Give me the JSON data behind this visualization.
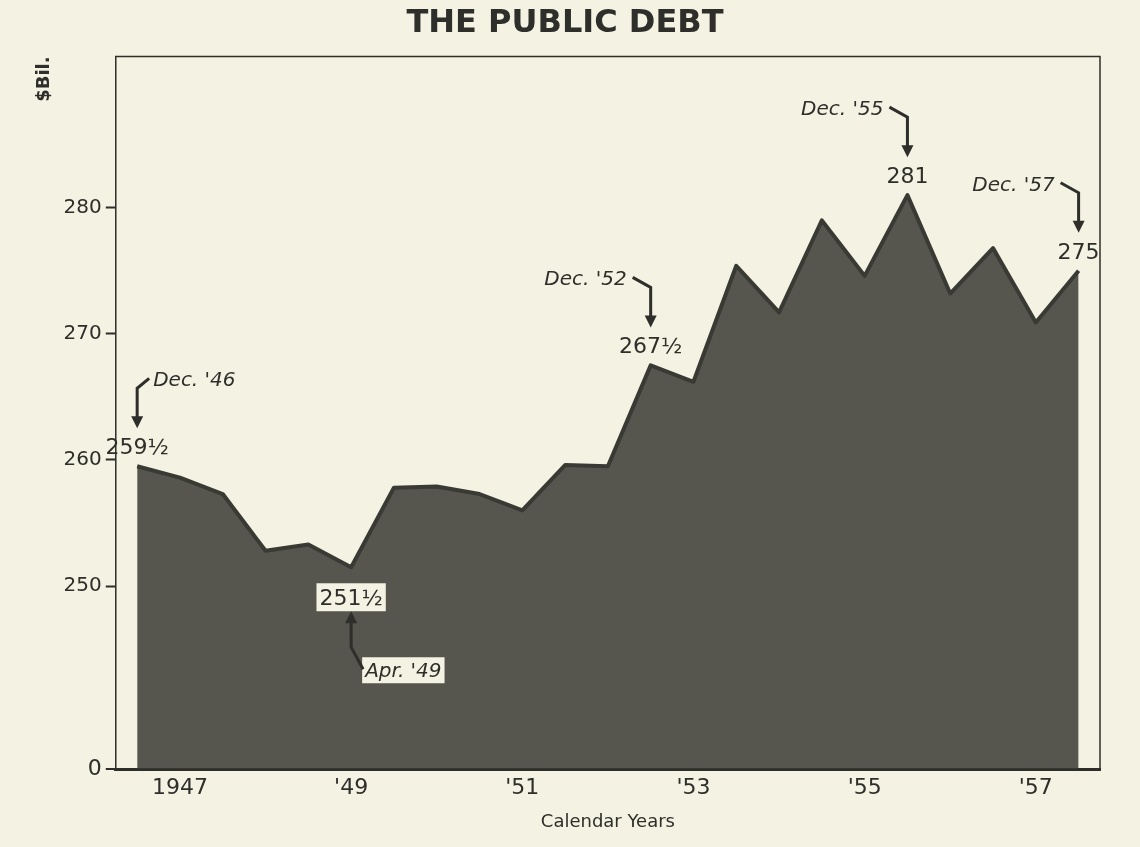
{
  "chart_data": {
    "type": "area",
    "title": "THE PUBLIC DEBT",
    "ylabel": "$Bil.",
    "xlabel": "Calendar Years",
    "categories": [
      null,
      "1947",
      null,
      null,
      null,
      "'49",
      null,
      null,
      null,
      "'51",
      null,
      null,
      null,
      "'53",
      null,
      null,
      null,
      "'55",
      null,
      null,
      null,
      "'57",
      null
    ],
    "series": [
      {
        "color": "#3a3a34",
        "values": [
          259.5,
          258.6,
          257.3,
          252.8,
          253.3,
          251.5,
          257.8,
          257.9,
          257.3,
          256,
          259.6,
          259.5,
          267.5,
          266.2,
          275.4,
          271.7,
          279,
          274.6,
          281,
          273.2,
          276.8,
          270.9,
          275
        ],
        "value_labels": [
          "259½",
          null,
          null,
          null,
          null,
          "251½",
          null,
          null,
          null,
          null,
          null,
          null,
          "267½",
          null,
          null,
          null,
          null,
          null,
          "281",
          null,
          null,
          null,
          "275"
        ]
      }
    ],
    "ylim": [
      235.5,
      292
    ],
    "yticks": [
      250,
      260,
      270,
      280
    ],
    "annotations": [
      "Dec. '46",
      "Apr. '49",
      "Dec. '52",
      "Dec. '55",
      "Dec. '57",
      "0"
    ],
    "grid": false,
    "legend": false
  }
}
